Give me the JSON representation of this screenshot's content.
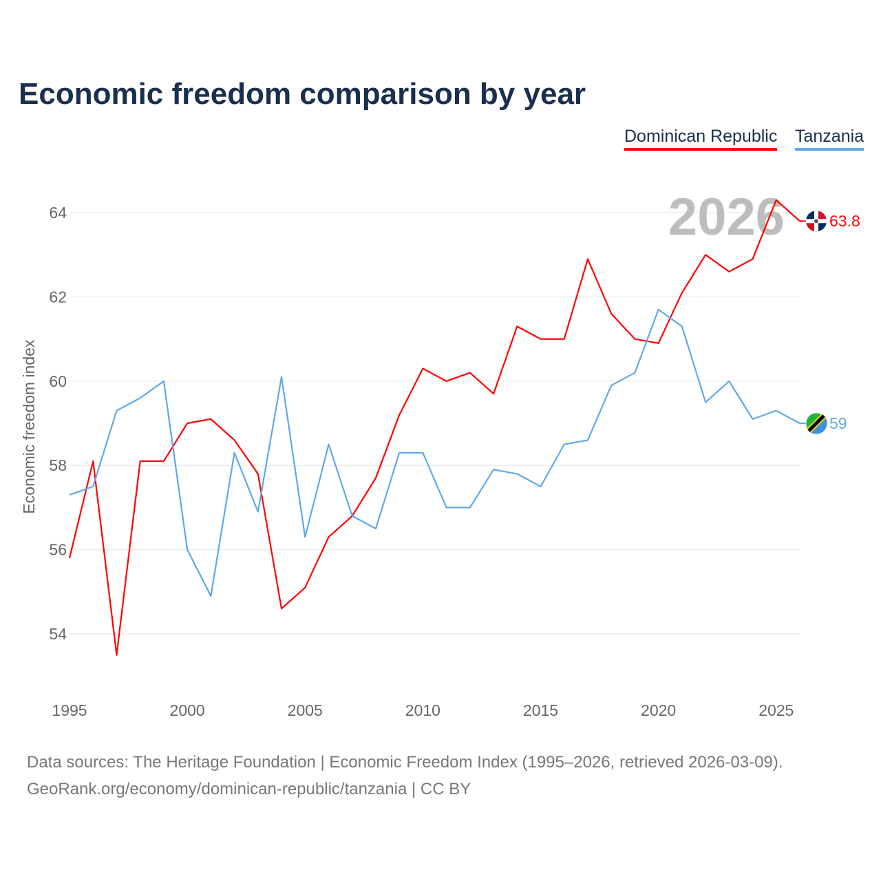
{
  "chart_data": {
    "type": "line",
    "title": "Economic freedom comparison by year",
    "xlabel": "",
    "ylabel": "Economic freedom index",
    "xlim": [
      1995,
      2026
    ],
    "ylim": [
      52.9,
      64.4
    ],
    "x_ticks": [
      "1995",
      "2000",
      "2005",
      "2010",
      "2015",
      "2020",
      "2025"
    ],
    "y_ticks": [
      "54",
      "56",
      "58",
      "60",
      "62",
      "64"
    ],
    "grid": true,
    "legend_placement": "top-right",
    "year_watermark": "2026",
    "x": [
      1995,
      1996,
      1997,
      1998,
      1999,
      2000,
      2001,
      2002,
      2003,
      2004,
      2005,
      2006,
      2007,
      2008,
      2009,
      2010,
      2011,
      2012,
      2013,
      2014,
      2015,
      2016,
      2017,
      2018,
      2019,
      2020,
      2021,
      2022,
      2023,
      2024,
      2025,
      2026
    ],
    "series": [
      {
        "name": "Dominican Republic",
        "color": "#ff0000",
        "end_label": "63.8",
        "values": [
          55.8,
          58.1,
          53.5,
          58.1,
          58.1,
          59.0,
          59.1,
          58.6,
          57.8,
          54.6,
          55.1,
          56.3,
          56.8,
          57.7,
          59.2,
          60.3,
          60.0,
          60.2,
          59.7,
          61.3,
          61.0,
          61.0,
          62.9,
          61.6,
          61.0,
          60.9,
          62.1,
          63.0,
          62.6,
          62.9,
          64.3,
          63.8
        ]
      },
      {
        "name": "Tanzania",
        "color": "#5fa8e8",
        "end_label": "59",
        "values": [
          57.3,
          57.5,
          59.3,
          59.6,
          60.0,
          56.0,
          54.9,
          58.3,
          56.9,
          60.1,
          56.3,
          58.5,
          56.8,
          56.5,
          58.3,
          58.3,
          57.0,
          57.0,
          57.9,
          57.8,
          57.5,
          58.5,
          58.6,
          59.9,
          60.2,
          61.7,
          61.3,
          59.5,
          60.0,
          59.1,
          59.3,
          59.0
        ]
      }
    ]
  },
  "footer": {
    "line1": "Data sources: The Heritage Foundation | Economic Freedom Index (1995–2026, retrieved 2026-03-09).",
    "line2": "GeoRank.org/economy/dominican-republic/tanzania | CC BY"
  }
}
